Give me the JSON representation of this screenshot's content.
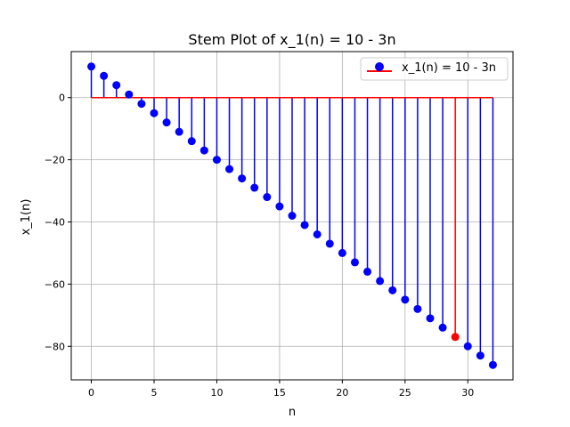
{
  "chart_data": {
    "type": "stem",
    "title": "Stem Plot of x_1(n) = 10 - 3n",
    "xlabel": "n",
    "ylabel": "x_1(n)",
    "xlim": [
      -1.6,
      33.6
    ],
    "ylim": [
      -90.8,
      14.8
    ],
    "x_ticks": [
      0,
      5,
      10,
      15,
      20,
      25,
      30
    ],
    "x_tick_labels": [
      "0",
      "5",
      "10",
      "15",
      "20",
      "25",
      "30"
    ],
    "y_ticks": [
      0,
      -20,
      -40,
      -60,
      -80
    ],
    "y_tick_labels": [
      "0",
      "−20",
      "−40",
      "−60",
      "−80"
    ],
    "grid": true,
    "legend": {
      "position": "top-right",
      "label": "x_1(n) = 10 - 3n"
    },
    "series": [
      {
        "name": "x_1(n) = 10 - 3n",
        "color": "#0000ff",
        "baseline_color": "#ff0000",
        "x": [
          0,
          1,
          2,
          3,
          4,
          5,
          6,
          7,
          8,
          9,
          10,
          11,
          12,
          13,
          14,
          15,
          16,
          17,
          18,
          19,
          20,
          21,
          22,
          23,
          24,
          25,
          26,
          27,
          28,
          29,
          30,
          31,
          32
        ],
        "values": [
          10,
          7,
          4,
          1,
          -2,
          -5,
          -8,
          -11,
          -14,
          -17,
          -20,
          -23,
          -26,
          -29,
          -32,
          -35,
          -38,
          -41,
          -44,
          -47,
          -50,
          -53,
          -56,
          -59,
          -62,
          -65,
          -68,
          -71,
          -74,
          -77,
          -80,
          -83,
          -86
        ]
      }
    ],
    "highlight": {
      "x": 29,
      "value": -77,
      "color": "#ff0000"
    }
  }
}
